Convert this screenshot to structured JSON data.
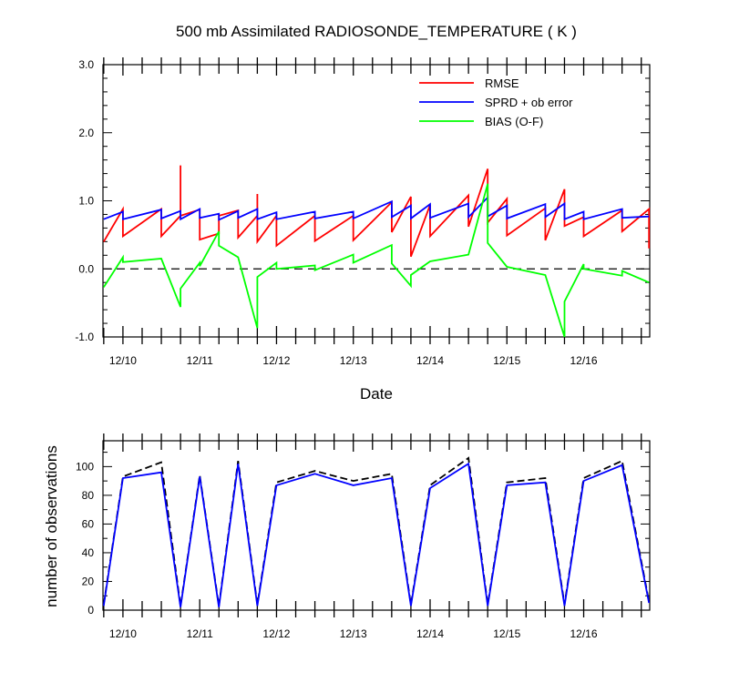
{
  "chart_data": [
    {
      "type": "line",
      "title": "500 mb Assimilated RADIOSONDE_TEMPERATURE ( K )",
      "xlabel": "Date",
      "ylabel": "",
      "x_range": [
        9.74,
        16.86
      ],
      "ylim": [
        -1.0,
        3.0
      ],
      "yticks": [
        -1.0,
        0.0,
        1.0,
        2.0,
        3.0
      ],
      "ytick_labels": [
        "-1.0",
        "0.0",
        "1.0",
        "2.0",
        "3.0"
      ],
      "xticks": [
        10,
        11,
        12,
        13,
        14,
        15,
        16
      ],
      "xtick_labels": [
        "12/10",
        "12/11",
        "12/12",
        "12/13",
        "12/14",
        "12/15",
        "12/16"
      ],
      "zero_line": "dashed",
      "legend": "top-right",
      "series": [
        {
          "name": "RMSE",
          "color": "#ff0000",
          "points": [
            [
              9.75,
              0.4
            ],
            [
              10.0,
              0.88
            ],
            [
              10.0,
              0.48
            ],
            [
              10.5,
              0.88
            ],
            [
              10.5,
              0.48
            ],
            [
              10.75,
              0.78
            ],
            [
              10.75,
              1.52
            ],
            [
              10.75,
              0.78
            ],
            [
              11.0,
              0.87
            ],
            [
              11.0,
              0.43
            ],
            [
              11.25,
              0.52
            ],
            [
              11.25,
              0.78
            ],
            [
              11.5,
              0.86
            ],
            [
              11.5,
              0.46
            ],
            [
              11.75,
              0.78
            ],
            [
              11.75,
              1.1
            ],
            [
              11.75,
              0.4
            ],
            [
              12.0,
              0.78
            ],
            [
              12.0,
              0.34
            ],
            [
              12.5,
              0.78
            ],
            [
              12.5,
              0.41
            ],
            [
              13.0,
              0.78
            ],
            [
              13.0,
              0.42
            ],
            [
              13.5,
              0.98
            ],
            [
              13.5,
              0.54
            ],
            [
              13.75,
              1.06
            ],
            [
              13.75,
              0.18
            ],
            [
              14.0,
              0.94
            ],
            [
              14.0,
              0.48
            ],
            [
              14.5,
              1.08
            ],
            [
              14.5,
              0.62
            ],
            [
              14.75,
              1.47
            ],
            [
              14.75,
              0.68
            ],
            [
              15.0,
              1.03
            ],
            [
              15.0,
              0.49
            ],
            [
              15.5,
              0.89
            ],
            [
              15.5,
              0.42
            ],
            [
              15.75,
              1.17
            ],
            [
              15.75,
              0.63
            ],
            [
              16.0,
              0.76
            ],
            [
              16.0,
              0.48
            ],
            [
              16.5,
              0.86
            ],
            [
              16.5,
              0.55
            ],
            [
              16.85,
              0.88
            ],
            [
              16.85,
              0.3
            ]
          ]
        },
        {
          "name": "SPRD + ob error",
          "color": "#0000ff",
          "points": [
            [
              9.75,
              0.73
            ],
            [
              10.0,
              0.84
            ],
            [
              10.0,
              0.73
            ],
            [
              10.5,
              0.87
            ],
            [
              10.5,
              0.74
            ],
            [
              10.75,
              0.85
            ],
            [
              10.75,
              0.73
            ],
            [
              11.0,
              0.88
            ],
            [
              11.0,
              0.75
            ],
            [
              11.25,
              0.81
            ],
            [
              11.25,
              0.72
            ],
            [
              11.5,
              0.85
            ],
            [
              11.5,
              0.75
            ],
            [
              11.75,
              0.88
            ],
            [
              11.75,
              0.73
            ],
            [
              12.0,
              0.83
            ],
            [
              12.0,
              0.73
            ],
            [
              12.5,
              0.84
            ],
            [
              12.5,
              0.74
            ],
            [
              13.0,
              0.84
            ],
            [
              13.0,
              0.74
            ],
            [
              13.5,
              0.99
            ],
            [
              13.5,
              0.76
            ],
            [
              13.75,
              0.93
            ],
            [
              13.75,
              0.74
            ],
            [
              14.0,
              0.95
            ],
            [
              14.0,
              0.75
            ],
            [
              14.5,
              0.96
            ],
            [
              14.5,
              0.76
            ],
            [
              14.75,
              1.05
            ],
            [
              14.75,
              0.77
            ],
            [
              15.0,
              0.93
            ],
            [
              15.0,
              0.74
            ],
            [
              15.5,
              0.95
            ],
            [
              15.5,
              0.76
            ],
            [
              15.75,
              0.96
            ],
            [
              15.75,
              0.73
            ],
            [
              16.0,
              0.84
            ],
            [
              16.0,
              0.73
            ],
            [
              16.5,
              0.88
            ],
            [
              16.5,
              0.75
            ],
            [
              16.85,
              0.77
            ]
          ]
        },
        {
          "name": "BIAS (O-F)",
          "color": "#00ff00",
          "points": [
            [
              9.75,
              -0.27
            ],
            [
              10.0,
              0.17
            ],
            [
              10.0,
              0.1
            ],
            [
              10.5,
              0.15
            ],
            [
              10.75,
              -0.56
            ],
            [
              10.75,
              -0.29
            ],
            [
              11.0,
              0.09
            ],
            [
              11.0,
              0.04
            ],
            [
              11.25,
              0.55
            ],
            [
              11.25,
              0.34
            ],
            [
              11.5,
              0.17
            ],
            [
              11.75,
              -0.87
            ],
            [
              11.75,
              -0.12
            ],
            [
              12.0,
              0.09
            ],
            [
              12.0,
              0.0
            ],
            [
              12.5,
              0.05
            ],
            [
              12.5,
              -0.02
            ],
            [
              13.0,
              0.21
            ],
            [
              13.0,
              0.09
            ],
            [
              13.5,
              0.35
            ],
            [
              13.5,
              0.08
            ],
            [
              13.75,
              -0.25
            ],
            [
              13.75,
              -0.09
            ],
            [
              14.0,
              0.11
            ],
            [
              14.5,
              0.21
            ],
            [
              14.75,
              1.25
            ],
            [
              14.75,
              0.38
            ],
            [
              15.0,
              0.03
            ],
            [
              15.5,
              -0.09
            ],
            [
              15.75,
              -1.0
            ],
            [
              15.75,
              -0.48
            ],
            [
              16.0,
              0.07
            ],
            [
              16.0,
              0.0
            ],
            [
              16.5,
              -0.1
            ],
            [
              16.5,
              -0.03
            ],
            [
              16.85,
              -0.2
            ]
          ]
        }
      ]
    },
    {
      "type": "line",
      "title": "",
      "xlabel": "",
      "ylabel": "number of observations",
      "x_range": [
        9.74,
        16.86
      ],
      "ylim": [
        0,
        118
      ],
      "yticks": [
        0,
        20,
        40,
        60,
        80,
        100
      ],
      "ytick_labels": [
        "0",
        "20",
        "40",
        "60",
        "80",
        "100"
      ],
      "xticks": [
        10,
        11,
        12,
        13,
        14,
        15,
        16
      ],
      "xtick_labels": [
        "12/10",
        "12/11",
        "12/12",
        "12/13",
        "12/14",
        "12/15",
        "12/16"
      ],
      "series": [
        {
          "color": "#000000",
          "style": "dashed",
          "points": [
            [
              9.75,
              4
            ],
            [
              10.0,
              93
            ],
            [
              10.5,
              103
            ],
            [
              10.75,
              3
            ],
            [
              11.0,
              94
            ],
            [
              11.25,
              3
            ],
            [
              11.5,
              104
            ],
            [
              11.75,
              4
            ],
            [
              12.0,
              89
            ],
            [
              12.5,
              97
            ],
            [
              13.0,
              90
            ],
            [
              13.5,
              95
            ],
            [
              13.75,
              4
            ],
            [
              14.0,
              87
            ],
            [
              14.5,
              106
            ],
            [
              14.75,
              4
            ],
            [
              15.0,
              89
            ],
            [
              15.5,
              92
            ],
            [
              15.75,
              4
            ],
            [
              16.0,
              92
            ],
            [
              16.5,
              104
            ],
            [
              16.85,
              6
            ]
          ]
        },
        {
          "color": "#0000ff",
          "style": "solid",
          "points": [
            [
              9.75,
              3
            ],
            [
              10.0,
              92
            ],
            [
              10.5,
              96
            ],
            [
              10.75,
              2
            ],
            [
              11.0,
              93
            ],
            [
              11.25,
              2
            ],
            [
              11.5,
              102
            ],
            [
              11.75,
              3
            ],
            [
              12.0,
              87
            ],
            [
              12.5,
              95
            ],
            [
              13.0,
              87
            ],
            [
              13.5,
              92
            ],
            [
              13.75,
              3
            ],
            [
              14.0,
              85
            ],
            [
              14.5,
              102
            ],
            [
              14.75,
              3
            ],
            [
              15.0,
              87
            ],
            [
              15.5,
              89
            ],
            [
              15.75,
              3
            ],
            [
              16.0,
              90
            ],
            [
              16.5,
              101
            ],
            [
              16.85,
              5
            ]
          ]
        }
      ]
    }
  ]
}
